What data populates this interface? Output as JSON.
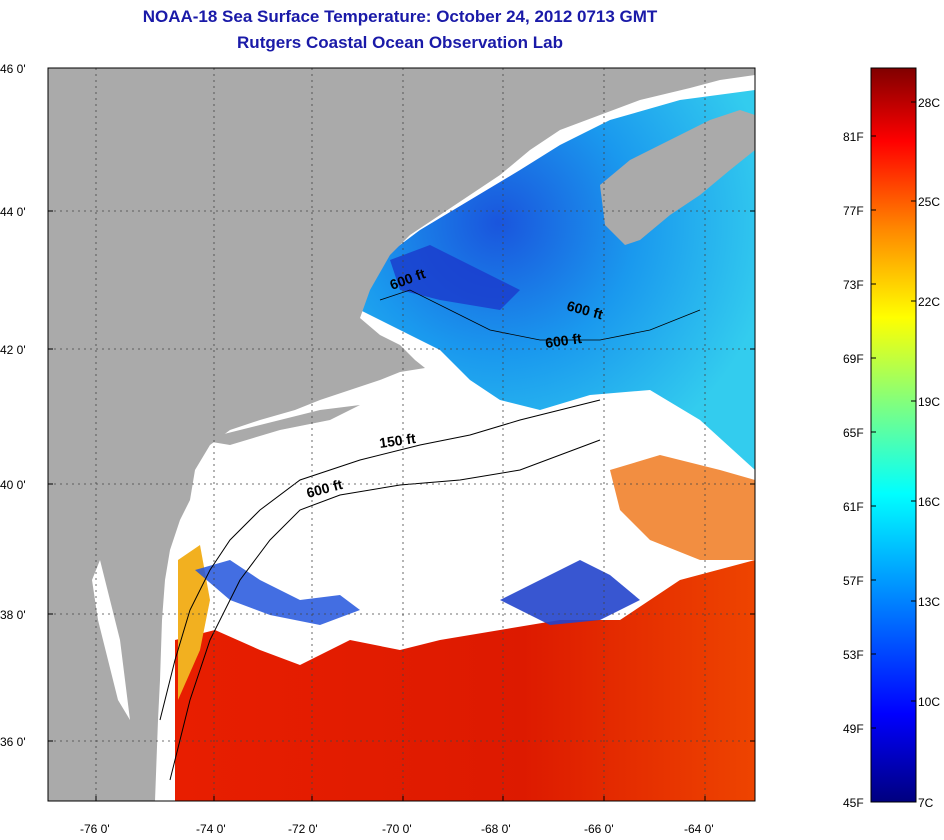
{
  "title": "NOAA-18 Sea Surface Temperature:  October 24, 2012 0713 GMT",
  "subtitle": "Rutgers Coastal Ocean Observation Lab",
  "map": {
    "lat_ticks": [
      "46 0'",
      "44 0'",
      "42 0'",
      "40 0'",
      "38 0'",
      "36 0'"
    ],
    "lon_ticks": [
      "-76 0'",
      "-74 0'",
      "-72 0'",
      "-70 0'",
      "-68 0'",
      "-66 0'",
      "-64 0'"
    ],
    "contour_labels": [
      "600 ft",
      "600 ft",
      "600 ft",
      "150 ft",
      "600 ft"
    ],
    "colors": {
      "land": "#aaaaaa",
      "cloud": "#ffffff",
      "cold_water": "#2299ee",
      "warm_water": "#dd1a00"
    }
  },
  "colorbar": {
    "fahrenheit": [
      "81F",
      "77F",
      "73F",
      "69F",
      "65F",
      "61F",
      "57F",
      "53F",
      "49F",
      "45F"
    ],
    "celsius": [
      "28C",
      "25C",
      "22C",
      "19C",
      "16C",
      "13C",
      "10C",
      "7C"
    ]
  }
}
